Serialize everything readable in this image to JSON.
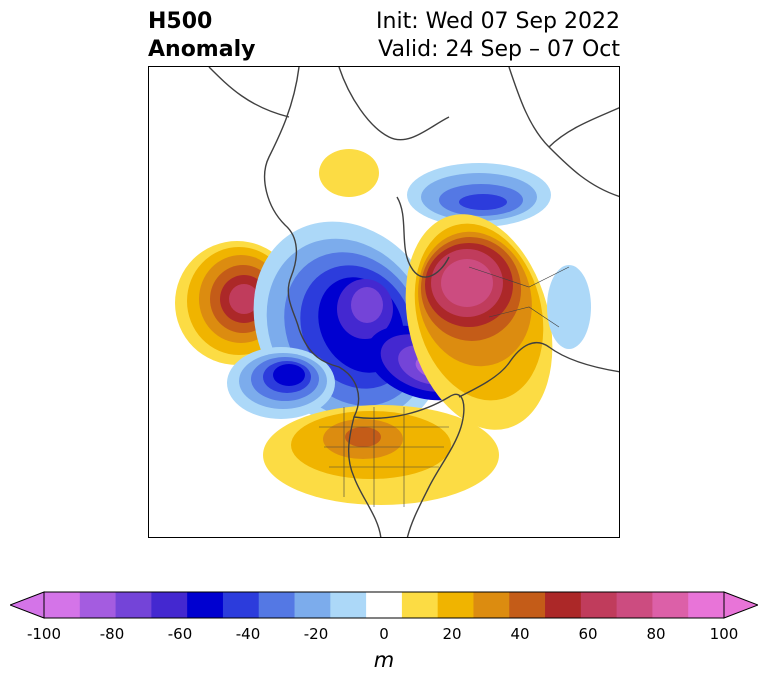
{
  "title": {
    "left_line1": "H500",
    "left_line2": "Anomaly",
    "right_line1": "Init: Wed 07 Sep 2022",
    "right_line2": "Valid: 24 Sep – 07 Oct"
  },
  "colorbar": {
    "units": "m",
    "ticks": [
      "-100",
      "-80",
      "-60",
      "-40",
      "-20",
      "0",
      "20",
      "40",
      "60",
      "80",
      "100"
    ],
    "tick_values": [
      -100,
      -80,
      -60,
      -40,
      -20,
      0,
      20,
      40,
      60,
      80,
      100
    ],
    "levels": [
      -100,
      -90,
      -80,
      -70,
      -60,
      -50,
      -40,
      -30,
      -20,
      -10,
      10,
      20,
      30,
      40,
      50,
      60,
      70,
      80,
      90,
      100
    ],
    "colors": [
      "#d474e8",
      "#a45ce0",
      "#7444d8",
      "#4428d0",
      "#0000d0",
      "#2c3cdc",
      "#5478e4",
      "#7cacec",
      "#acd8f8",
      "#ffffff",
      "#fcdc44",
      "#f0b400",
      "#dc8c10",
      "#c45c18",
      "#ac2828",
      "#c03c5c",
      "#cc4c80",
      "#dc60a8",
      "#e874d8"
    ],
    "extend_low_color": "#d474e8",
    "extend_high_color": "#e874d8"
  },
  "map": {
    "projection": "polar stereographic",
    "region": "North America / North Pacific",
    "coastline_color": "#404040"
  }
}
